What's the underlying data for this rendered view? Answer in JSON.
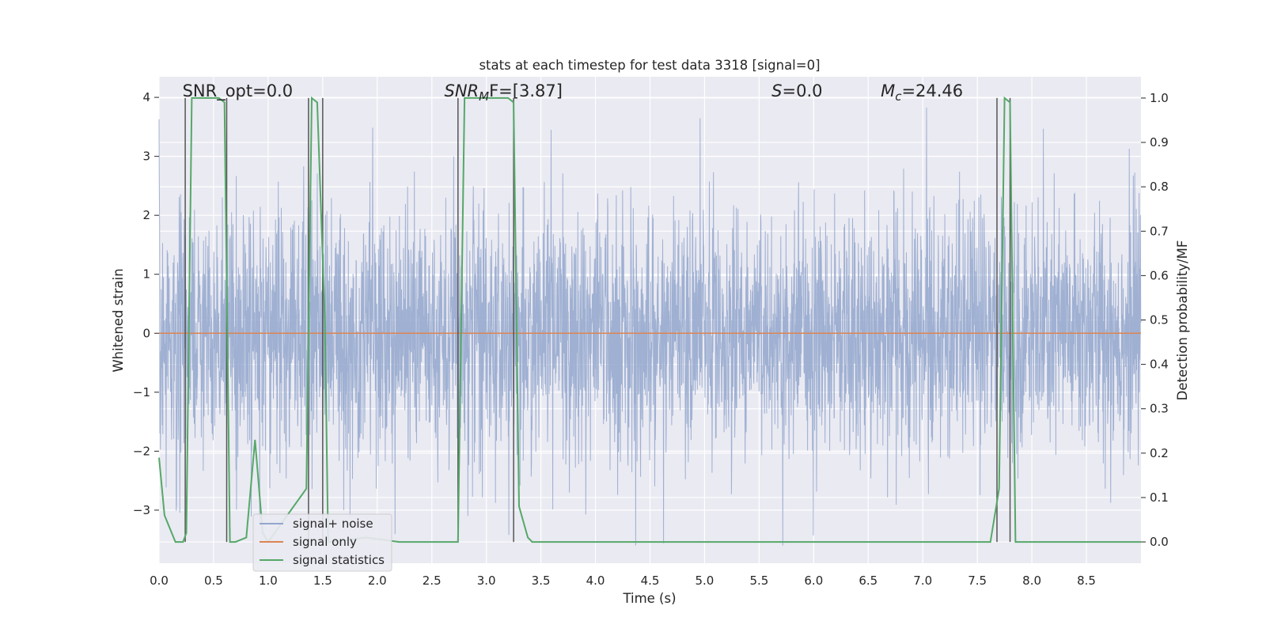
{
  "chart_data": {
    "type": "line",
    "title": "stats at each timestep for test data 3318 [signal=0]",
    "xlabel": "Time (s)",
    "ylabel": "Whitened strain",
    "y2label": "Detection probability/MF",
    "xlim": [
      0.0,
      9.0
    ],
    "ylim": [
      -3.9,
      4.35
    ],
    "y2lim": [
      -0.048,
      1.048
    ],
    "x_ticks": [
      "0.0",
      "0.5",
      "1.0",
      "1.5",
      "2.0",
      "2.5",
      "3.0",
      "3.5",
      "4.0",
      "4.5",
      "5.0",
      "5.5",
      "6.0",
      "6.5",
      "7.0",
      "7.5",
      "8.0",
      "8.5"
    ],
    "y_ticks": [
      "4",
      "3",
      "2",
      "1",
      "0",
      "−1",
      "−2",
      "−3"
    ],
    "y2_ticks": [
      "1.0",
      "0.9",
      "0.8",
      "0.7",
      "0.6",
      "0.5",
      "0.4",
      "0.3",
      "0.2",
      "0.1",
      "0.0"
    ],
    "grid": true,
    "legend_position": "lower-left",
    "series": [
      {
        "name": "signal+ noise",
        "color": "#92a6cd",
        "description_note": "dense white-noise strain, roughly ±1.2 typical with spikes to about ±3.5"
      },
      {
        "name": "signal only",
        "color": "#dd8452",
        "x": [
          0.0,
          9.0
        ],
        "y": [
          0.0,
          0.0
        ]
      },
      {
        "name": "signal statistics",
        "color": "#55a868",
        "axis": "right",
        "x": [
          0.0,
          0.05,
          0.15,
          0.22,
          0.25,
          0.3,
          0.4,
          0.55,
          0.6,
          0.65,
          0.7,
          0.8,
          0.88,
          0.95,
          1.0,
          1.35,
          1.4,
          1.45,
          1.52,
          1.55,
          1.6,
          1.9,
          2.2,
          2.74,
          2.8,
          2.85,
          3.2,
          3.25,
          3.3,
          3.38,
          3.42,
          7.62,
          7.7,
          7.75,
          7.8,
          7.85,
          7.9,
          9.0
        ],
        "y": [
          0.19,
          0.06,
          0.0,
          0.0,
          0.02,
          1.0,
          1.0,
          1.0,
          0.99,
          0.0,
          0.0,
          0.01,
          0.23,
          0.02,
          0.0,
          0.12,
          1.0,
          0.99,
          0.5,
          0.0,
          0.0,
          0.01,
          0.0,
          0.0,
          1.0,
          1.0,
          1.0,
          0.99,
          0.08,
          0.01,
          0.0,
          0.0,
          0.12,
          1.0,
          0.99,
          0.0,
          0.0,
          0.0
        ]
      }
    ],
    "vertical_markers_x": [
      0.24,
      0.62,
      1.37,
      1.5,
      2.74,
      3.25,
      7.68,
      7.8
    ],
    "annotations": [
      {
        "text": "SNR_opt=0.0",
        "x": 0.2
      },
      {
        "pre": "SNR",
        "sub": "M",
        "post": "F=[3.87]",
        "x": 2.6
      },
      {
        "pre": "S",
        "post": "=0.0",
        "x": 5.6
      },
      {
        "pre": "M",
        "sub": "c",
        "post": "=24.46",
        "x": 6.6
      }
    ],
    "legend": {
      "items": [
        "signal+ noise",
        "signal only",
        "signal statistics"
      ]
    }
  }
}
